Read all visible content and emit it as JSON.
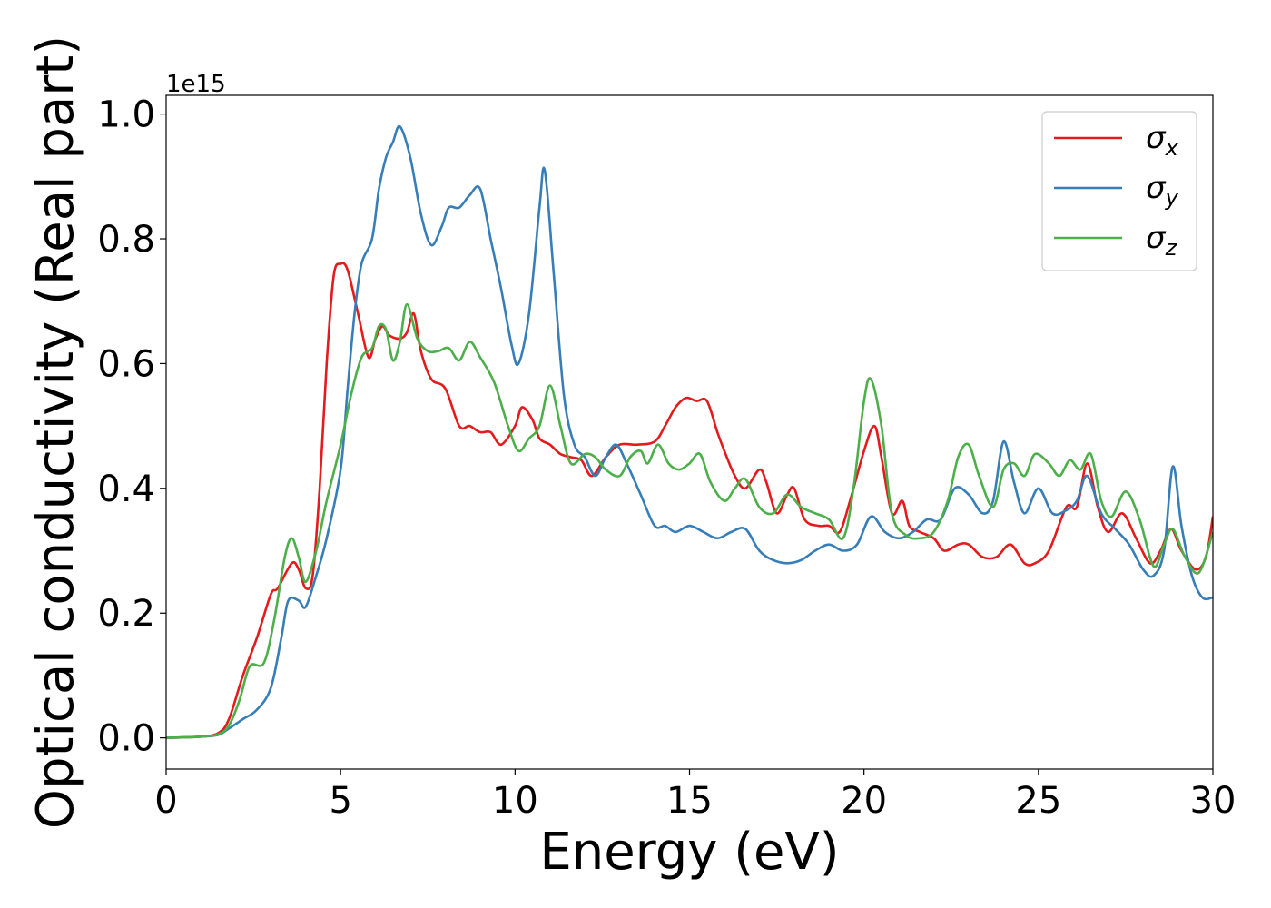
{
  "chart_data": {
    "type": "line",
    "xlabel": "Energy (eV)",
    "ylabel": "Optical conductivity (Real part)",
    "offset_text": "1e15",
    "xlim": [
      0,
      30
    ],
    "ylim": [
      -0.05,
      1.03
    ],
    "xticks": [
      0,
      5,
      10,
      15,
      20,
      25,
      30
    ],
    "xtick_labels": [
      "0",
      "5",
      "10",
      "15",
      "20",
      "25",
      "30"
    ],
    "yticks": [
      0.0,
      0.2,
      0.4,
      0.6,
      0.8,
      1.0
    ],
    "ytick_labels": [
      "0.0",
      "0.2",
      "0.4",
      "0.6",
      "0.8",
      "1.0"
    ],
    "grid": false,
    "legend_position": "top-right",
    "series": [
      {
        "name": "σx",
        "legend_base": "σ",
        "legend_sub": "x",
        "color": "#e41a1c",
        "points": [
          [
            0,
            0
          ],
          [
            1,
            0.002
          ],
          [
            1.5,
            0.008
          ],
          [
            1.8,
            0.03
          ],
          [
            2.2,
            0.1
          ],
          [
            2.6,
            0.16
          ],
          [
            3.0,
            0.23
          ],
          [
            3.2,
            0.24
          ],
          [
            3.6,
            0.28
          ],
          [
            3.8,
            0.27
          ],
          [
            4.0,
            0.24
          ],
          [
            4.2,
            0.26
          ],
          [
            4.4,
            0.4
          ],
          [
            4.6,
            0.6
          ],
          [
            4.8,
            0.74
          ],
          [
            5.0,
            0.76
          ],
          [
            5.2,
            0.75
          ],
          [
            5.5,
            0.68
          ],
          [
            5.8,
            0.61
          ],
          [
            6.0,
            0.64
          ],
          [
            6.2,
            0.66
          ],
          [
            6.4,
            0.645
          ],
          [
            6.7,
            0.64
          ],
          [
            6.9,
            0.65
          ],
          [
            7.1,
            0.68
          ],
          [
            7.3,
            0.62
          ],
          [
            7.6,
            0.575
          ],
          [
            8.0,
            0.56
          ],
          [
            8.4,
            0.5
          ],
          [
            8.7,
            0.5
          ],
          [
            9.0,
            0.49
          ],
          [
            9.3,
            0.49
          ],
          [
            9.6,
            0.47
          ],
          [
            10.0,
            0.5
          ],
          [
            10.2,
            0.53
          ],
          [
            10.5,
            0.51
          ],
          [
            10.7,
            0.48
          ],
          [
            11.0,
            0.47
          ],
          [
            11.3,
            0.455
          ],
          [
            11.6,
            0.45
          ],
          [
            11.9,
            0.445
          ],
          [
            12.2,
            0.42
          ],
          [
            12.6,
            0.45
          ],
          [
            13.0,
            0.47
          ],
          [
            13.5,
            0.47
          ],
          [
            14.0,
            0.475
          ],
          [
            14.3,
            0.5
          ],
          [
            14.6,
            0.53
          ],
          [
            14.9,
            0.545
          ],
          [
            15.2,
            0.54
          ],
          [
            15.5,
            0.54
          ],
          [
            15.8,
            0.49
          ],
          [
            16.0,
            0.46
          ],
          [
            16.3,
            0.42
          ],
          [
            16.6,
            0.4
          ],
          [
            17.0,
            0.43
          ],
          [
            17.2,
            0.41
          ],
          [
            17.5,
            0.36
          ],
          [
            17.8,
            0.39
          ],
          [
            18.0,
            0.4
          ],
          [
            18.3,
            0.35
          ],
          [
            18.7,
            0.34
          ],
          [
            19.0,
            0.34
          ],
          [
            19.3,
            0.33
          ],
          [
            19.6,
            0.38
          ],
          [
            20.0,
            0.46
          ],
          [
            20.3,
            0.5
          ],
          [
            20.5,
            0.45
          ],
          [
            20.8,
            0.36
          ],
          [
            21.1,
            0.38
          ],
          [
            21.3,
            0.34
          ],
          [
            21.6,
            0.33
          ],
          [
            22.0,
            0.32
          ],
          [
            22.3,
            0.3
          ],
          [
            22.7,
            0.31
          ],
          [
            23.0,
            0.31
          ],
          [
            23.4,
            0.29
          ],
          [
            23.8,
            0.29
          ],
          [
            24.2,
            0.31
          ],
          [
            24.6,
            0.28
          ],
          [
            24.9,
            0.28
          ],
          [
            25.3,
            0.3
          ],
          [
            25.8,
            0.37
          ],
          [
            26.1,
            0.37
          ],
          [
            26.4,
            0.44
          ],
          [
            26.7,
            0.37
          ],
          [
            27.0,
            0.33
          ],
          [
            27.4,
            0.36
          ],
          [
            27.8,
            0.32
          ],
          [
            28.2,
            0.28
          ],
          [
            28.5,
            0.3
          ],
          [
            28.8,
            0.335
          ],
          [
            29.1,
            0.3
          ],
          [
            29.5,
            0.27
          ],
          [
            29.8,
            0.29
          ],
          [
            30.0,
            0.355
          ]
        ]
      },
      {
        "name": "σy",
        "legend_base": "σ",
        "legend_sub": "y",
        "color": "#377eb8",
        "points": [
          [
            0,
            0
          ],
          [
            1,
            0.002
          ],
          [
            1.5,
            0.005
          ],
          [
            1.8,
            0.015
          ],
          [
            2.2,
            0.03
          ],
          [
            2.6,
            0.045
          ],
          [
            3.0,
            0.08
          ],
          [
            3.3,
            0.16
          ],
          [
            3.5,
            0.22
          ],
          [
            3.8,
            0.22
          ],
          [
            4.0,
            0.21
          ],
          [
            4.3,
            0.26
          ],
          [
            4.6,
            0.32
          ],
          [
            5.0,
            0.43
          ],
          [
            5.2,
            0.56
          ],
          [
            5.4,
            0.68
          ],
          [
            5.6,
            0.76
          ],
          [
            5.9,
            0.8
          ],
          [
            6.1,
            0.88
          ],
          [
            6.3,
            0.93
          ],
          [
            6.5,
            0.955
          ],
          [
            6.7,
            0.98
          ],
          [
            7.0,
            0.93
          ],
          [
            7.3,
            0.84
          ],
          [
            7.6,
            0.79
          ],
          [
            7.9,
            0.82
          ],
          [
            8.1,
            0.85
          ],
          [
            8.4,
            0.85
          ],
          [
            8.7,
            0.87
          ],
          [
            9.0,
            0.88
          ],
          [
            9.3,
            0.8
          ],
          [
            9.6,
            0.72
          ],
          [
            9.9,
            0.63
          ],
          [
            10.1,
            0.6
          ],
          [
            10.4,
            0.68
          ],
          [
            10.7,
            0.85
          ],
          [
            10.85,
            0.91
          ],
          [
            11.1,
            0.75
          ],
          [
            11.4,
            0.55
          ],
          [
            11.7,
            0.47
          ],
          [
            12.0,
            0.45
          ],
          [
            12.3,
            0.42
          ],
          [
            12.6,
            0.45
          ],
          [
            12.9,
            0.47
          ],
          [
            13.2,
            0.44
          ],
          [
            13.6,
            0.39
          ],
          [
            14.0,
            0.34
          ],
          [
            14.3,
            0.34
          ],
          [
            14.6,
            0.33
          ],
          [
            15.0,
            0.34
          ],
          [
            15.4,
            0.33
          ],
          [
            15.8,
            0.32
          ],
          [
            16.2,
            0.33
          ],
          [
            16.6,
            0.335
          ],
          [
            17.0,
            0.3
          ],
          [
            17.4,
            0.285
          ],
          [
            17.8,
            0.28
          ],
          [
            18.2,
            0.285
          ],
          [
            18.6,
            0.3
          ],
          [
            19.0,
            0.31
          ],
          [
            19.4,
            0.3
          ],
          [
            19.8,
            0.31
          ],
          [
            20.2,
            0.355
          ],
          [
            20.6,
            0.33
          ],
          [
            21.0,
            0.32
          ],
          [
            21.4,
            0.33
          ],
          [
            21.8,
            0.35
          ],
          [
            22.2,
            0.35
          ],
          [
            22.6,
            0.4
          ],
          [
            23.0,
            0.39
          ],
          [
            23.4,
            0.36
          ],
          [
            23.7,
            0.38
          ],
          [
            24.0,
            0.475
          ],
          [
            24.3,
            0.41
          ],
          [
            24.6,
            0.36
          ],
          [
            25.0,
            0.4
          ],
          [
            25.4,
            0.36
          ],
          [
            25.8,
            0.365
          ],
          [
            26.1,
            0.38
          ],
          [
            26.4,
            0.42
          ],
          [
            26.8,
            0.36
          ],
          [
            27.2,
            0.335
          ],
          [
            27.6,
            0.31
          ],
          [
            28.0,
            0.27
          ],
          [
            28.3,
            0.26
          ],
          [
            28.6,
            0.3
          ],
          [
            28.85,
            0.435
          ],
          [
            29.1,
            0.34
          ],
          [
            29.4,
            0.26
          ],
          [
            29.7,
            0.225
          ],
          [
            30.0,
            0.225
          ]
        ]
      },
      {
        "name": "σz",
        "legend_base": "σ",
        "legend_sub": "z",
        "color": "#4daf4a",
        "points": [
          [
            0,
            0
          ],
          [
            1,
            0.002
          ],
          [
            1.5,
            0.006
          ],
          [
            1.8,
            0.02
          ],
          [
            2.1,
            0.06
          ],
          [
            2.4,
            0.115
          ],
          [
            2.8,
            0.12
          ],
          [
            3.1,
            0.19
          ],
          [
            3.4,
            0.29
          ],
          [
            3.6,
            0.32
          ],
          [
            3.8,
            0.29
          ],
          [
            4.0,
            0.25
          ],
          [
            4.3,
            0.3
          ],
          [
            4.6,
            0.38
          ],
          [
            5.0,
            0.47
          ],
          [
            5.3,
            0.55
          ],
          [
            5.6,
            0.61
          ],
          [
            5.9,
            0.625
          ],
          [
            6.1,
            0.66
          ],
          [
            6.3,
            0.655
          ],
          [
            6.5,
            0.605
          ],
          [
            6.7,
            0.635
          ],
          [
            6.9,
            0.695
          ],
          [
            7.2,
            0.64
          ],
          [
            7.5,
            0.62
          ],
          [
            7.8,
            0.62
          ],
          [
            8.1,
            0.625
          ],
          [
            8.4,
            0.605
          ],
          [
            8.7,
            0.635
          ],
          [
            9.0,
            0.61
          ],
          [
            9.4,
            0.57
          ],
          [
            9.8,
            0.5
          ],
          [
            10.1,
            0.46
          ],
          [
            10.4,
            0.48
          ],
          [
            10.7,
            0.5
          ],
          [
            11.0,
            0.565
          ],
          [
            11.3,
            0.5
          ],
          [
            11.6,
            0.44
          ],
          [
            12.0,
            0.455
          ],
          [
            12.3,
            0.45
          ],
          [
            12.6,
            0.43
          ],
          [
            13.0,
            0.42
          ],
          [
            13.3,
            0.45
          ],
          [
            13.6,
            0.46
          ],
          [
            13.8,
            0.44
          ],
          [
            14.1,
            0.47
          ],
          [
            14.4,
            0.44
          ],
          [
            14.7,
            0.43
          ],
          [
            15.0,
            0.44
          ],
          [
            15.3,
            0.455
          ],
          [
            15.6,
            0.41
          ],
          [
            16.0,
            0.38
          ],
          [
            16.3,
            0.4
          ],
          [
            16.6,
            0.415
          ],
          [
            17.0,
            0.37
          ],
          [
            17.4,
            0.36
          ],
          [
            17.8,
            0.39
          ],
          [
            18.2,
            0.37
          ],
          [
            18.6,
            0.36
          ],
          [
            19.0,
            0.35
          ],
          [
            19.4,
            0.32
          ],
          [
            19.7,
            0.4
          ],
          [
            20.0,
            0.54
          ],
          [
            20.2,
            0.575
          ],
          [
            20.5,
            0.5
          ],
          [
            20.8,
            0.36
          ],
          [
            21.2,
            0.325
          ],
          [
            21.6,
            0.32
          ],
          [
            22.0,
            0.33
          ],
          [
            22.4,
            0.38
          ],
          [
            22.7,
            0.45
          ],
          [
            23.0,
            0.47
          ],
          [
            23.3,
            0.42
          ],
          [
            23.7,
            0.37
          ],
          [
            24.0,
            0.43
          ],
          [
            24.3,
            0.44
          ],
          [
            24.6,
            0.42
          ],
          [
            24.9,
            0.455
          ],
          [
            25.3,
            0.44
          ],
          [
            25.6,
            0.42
          ],
          [
            25.9,
            0.445
          ],
          [
            26.2,
            0.43
          ],
          [
            26.5,
            0.455
          ],
          [
            26.8,
            0.38
          ],
          [
            27.1,
            0.355
          ],
          [
            27.5,
            0.395
          ],
          [
            27.9,
            0.35
          ],
          [
            28.3,
            0.275
          ],
          [
            28.6,
            0.31
          ],
          [
            28.85,
            0.335
          ],
          [
            29.2,
            0.29
          ],
          [
            29.6,
            0.265
          ],
          [
            30.0,
            0.33
          ]
        ]
      }
    ]
  }
}
